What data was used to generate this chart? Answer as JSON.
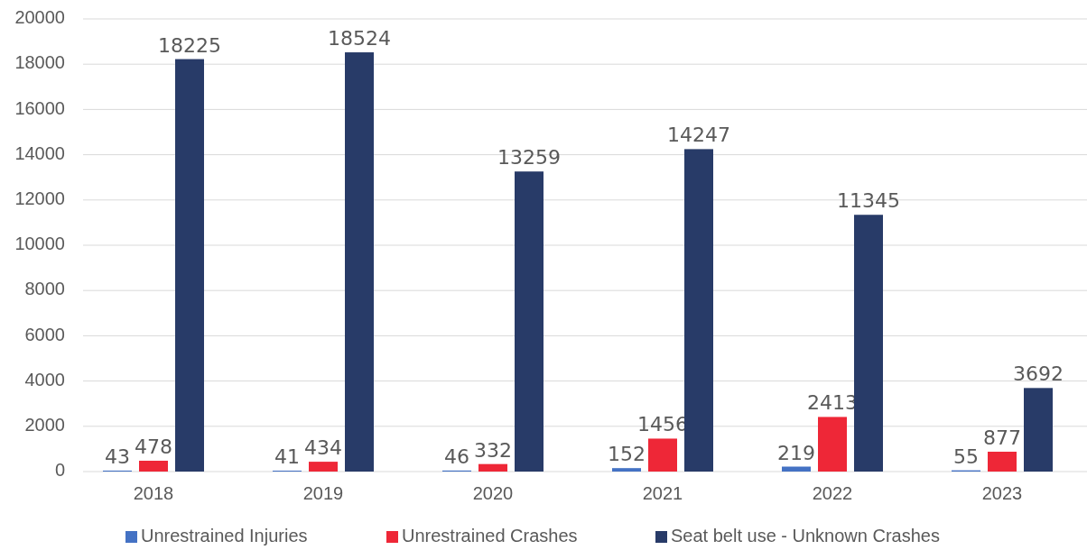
{
  "chart_data": {
    "type": "bar",
    "categories": [
      "2018",
      "2019",
      "2020",
      "2021",
      "2022",
      "2023"
    ],
    "series": [
      {
        "name": "Unrestrained Injuries",
        "color": "#4472c4",
        "values": [
          43,
          41,
          46,
          152,
          219,
          55
        ]
      },
      {
        "name": "Unrestrained Crashes",
        "color": "#ee2737",
        "values": [
          478,
          434,
          332,
          1456,
          2413,
          877
        ]
      },
      {
        "name": "Seat belt use - Unknown Crashes",
        "color": "#283b68",
        "values": [
          18225,
          18524,
          13259,
          14247,
          11345,
          3692
        ]
      }
    ],
    "ylim": [
      0,
      20000
    ],
    "yticks": [
      0,
      2000,
      4000,
      6000,
      8000,
      10000,
      12000,
      14000,
      16000,
      18000,
      20000
    ],
    "grid": "y",
    "legend": "bottom",
    "data_labels": true
  }
}
